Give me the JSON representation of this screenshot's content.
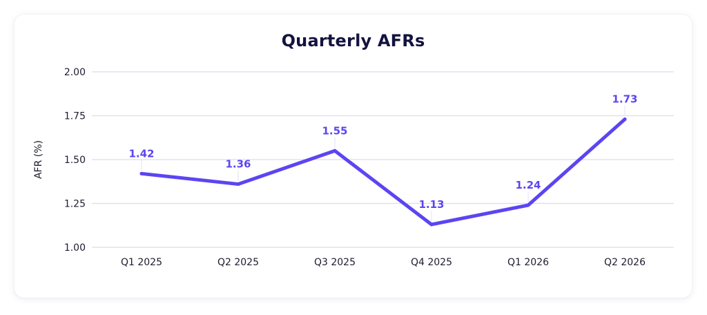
{
  "chart_data": {
    "type": "line",
    "title": "Quarterly AFRs",
    "xlabel": "",
    "ylabel": "AFR (%)",
    "categories": [
      "Q1 2025",
      "Q2 2025",
      "Q3 2025",
      "Q4 2025",
      "Q1 2026",
      "Q2 2026"
    ],
    "series": [
      {
        "values": [
          1.42,
          1.36,
          1.55,
          1.13,
          1.24,
          1.73
        ],
        "color": "#5b45f2"
      }
    ],
    "data_labels": [
      "1.42",
      "1.36",
      "1.55",
      "1.13",
      "1.24",
      "1.73"
    ],
    "ylim": [
      1.0,
      2.0
    ],
    "yticks": [
      1.0,
      1.25,
      1.5,
      1.75,
      2.0
    ],
    "ytick_labels": [
      "1.00",
      "1.25",
      "1.50",
      "1.75",
      "2.00"
    ],
    "grid": true,
    "legend": "none",
    "colors": {
      "line": "#5b45f2",
      "data_label": "#5b45f2",
      "grid": "#dcdcf0",
      "title": "#14123f"
    }
  }
}
